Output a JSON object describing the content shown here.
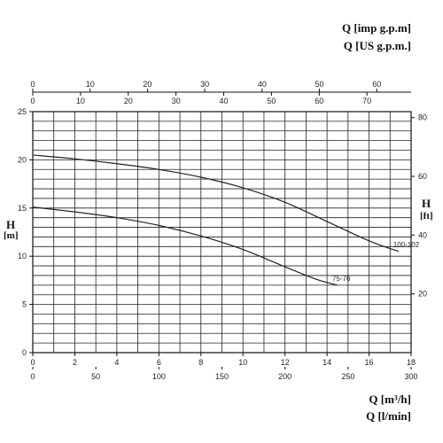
{
  "chart_data": {
    "type": "line",
    "units": {
      "imp_gpm": "Q [imp g.p.m]",
      "us_gpm": "Q [US g.p.m.]",
      "m3h": "Q [m³/h]",
      "lmin": "Q [l/min]",
      "h_m_title": "H",
      "h_m_unit": "[m]",
      "h_ft_title": "H",
      "h_ft_unit": "[ft]"
    },
    "xlim": [
      0,
      18
    ],
    "ylim": [
      0,
      25
    ],
    "ft_lim": [
      0,
      82
    ],
    "x_ticks_m3h": [
      "0",
      "2",
      "4",
      "6",
      "8",
      "10",
      "12",
      "14",
      "16",
      "18"
    ],
    "x_ticks_lmin": [
      "0",
      "50",
      "100",
      "150",
      "200",
      "250",
      "300"
    ],
    "x_ticks_usgpm": [
      "0",
      "10",
      "20",
      "30",
      "40",
      "50",
      "60",
      "70"
    ],
    "x_ticks_impgpm": [
      "0",
      "10",
      "20",
      "30",
      "40",
      "50",
      "60"
    ],
    "y_ticks_m": [
      "0",
      "5",
      "10",
      "15",
      "20",
      "25"
    ],
    "y_ticks_ft": [
      "20",
      "40",
      "60",
      "80"
    ],
    "series": [
      {
        "name": "100-102",
        "x": [
          0,
          2,
          4,
          6,
          8,
          10,
          12,
          14,
          16,
          17.4
        ],
        "y": [
          20.5,
          20.1,
          19.6,
          19.0,
          18.2,
          17.1,
          15.6,
          13.6,
          11.6,
          10.5
        ]
      },
      {
        "name": "75-76",
        "x": [
          0,
          2,
          4,
          6,
          8,
          10,
          12,
          13.5,
          14.5
        ],
        "y": [
          15.1,
          14.6,
          14.0,
          13.2,
          12.1,
          10.7,
          8.9,
          7.6,
          7.0
        ]
      }
    ]
  }
}
